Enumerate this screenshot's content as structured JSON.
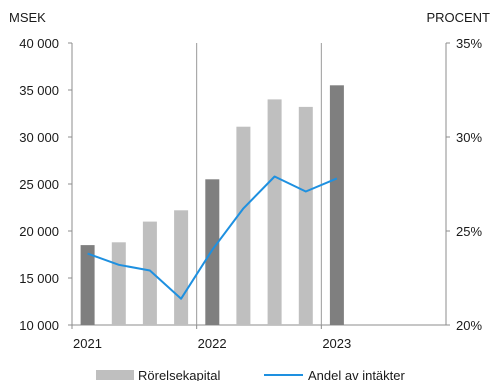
{
  "chart_data": {
    "type": "bar",
    "left_unit": "MSEK",
    "right_unit": "PROCENT",
    "x_labels": [
      "2021",
      "2022",
      "2023"
    ],
    "categories": [
      "2021 Q1",
      "2021 Q2",
      "2021 Q3",
      "2021 Q4",
      "2022 Q1",
      "2022 Q2",
      "2022 Q3",
      "2022 Q4",
      "2023 Q1",
      "2023 Q2",
      "2023 Q3",
      "2023 Q4"
    ],
    "y_left": {
      "min": 10000,
      "max": 40000,
      "step": 5000,
      "tick_labels": [
        "10 000",
        "15 000",
        "20 000",
        "25 000",
        "30 000",
        "35 000",
        "40 000"
      ]
    },
    "y_right": {
      "min": 20,
      "max": 35,
      "step": 5,
      "tick_labels": [
        "20%",
        "25%",
        "30%",
        "35%"
      ]
    },
    "series": [
      {
        "name": "Rörelsekapital",
        "kind": "bar",
        "axis": "left",
        "values": [
          18500,
          18800,
          21000,
          22200,
          25500,
          31100,
          34000,
          33200,
          35500,
          null,
          null,
          null
        ],
        "color": "#bfbfbf",
        "highlight_color": "#7f7f7f",
        "highlight_every": 4
      },
      {
        "name": "Andel av intäkter",
        "kind": "line",
        "axis": "right",
        "values": [
          23.8,
          23.2,
          22.9,
          21.4,
          24.0,
          26.2,
          27.9,
          27.1,
          27.8,
          null,
          null,
          null
        ],
        "color": "#1e90e0"
      }
    ],
    "year_separators_after": [
      4,
      8
    ],
    "legend": "bottom"
  }
}
